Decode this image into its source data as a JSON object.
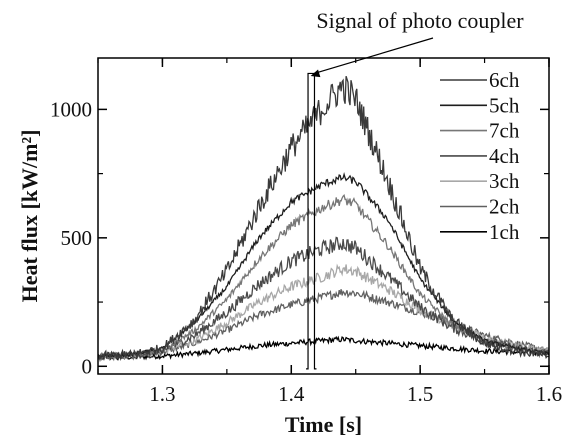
{
  "chart_data": {
    "type": "line",
    "title": "",
    "xlabel": "Time [s]",
    "ylabel": "Heat flux [kW/m²]",
    "xlim": [
      1.25,
      1.6
    ],
    "ylim": [
      -30,
      1200
    ],
    "x_ticks": [
      1.3,
      1.4,
      1.5,
      1.6
    ],
    "x_tick_labels": [
      "1.3",
      "1.4",
      "1.5",
      "1.6"
    ],
    "y_ticks": [
      0,
      500,
      1000
    ],
    "y_tick_labels": [
      "0",
      "500",
      "1000"
    ],
    "grid": false,
    "legend_position": "top-right",
    "annotation": {
      "text": "Signal of photo coupler",
      "points_to": [
        1.415,
        1130
      ]
    },
    "photo_coupler_signal": {
      "x_start": 1.413,
      "x_end": 1.418,
      "y_low": -10,
      "y_high": 1140
    },
    "x": [
      1.25,
      1.275,
      1.3,
      1.325,
      1.35,
      1.375,
      1.4,
      1.425,
      1.44,
      1.45,
      1.475,
      1.5,
      1.525,
      1.55,
      1.575,
      1.6
    ],
    "series": [
      {
        "name": "6ch",
        "color": "#3a3a3a",
        "noise": 26,
        "values": [
          40,
          45,
          70,
          180,
          370,
          620,
          850,
          1010,
          1090,
          1040,
          720,
          380,
          180,
          90,
          60,
          40
        ]
      },
      {
        "name": "5ch",
        "color": "#1e1e1e",
        "noise": 8,
        "values": [
          40,
          45,
          70,
          170,
          310,
          500,
          640,
          710,
          735,
          720,
          570,
          340,
          180,
          100,
          70,
          50
        ]
      },
      {
        "name": "7ch",
        "color": "#777777",
        "noise": 12,
        "values": [
          40,
          45,
          60,
          140,
          260,
          420,
          550,
          620,
          650,
          630,
          470,
          280,
          160,
          100,
          70,
          50
        ]
      },
      {
        "name": "4ch",
        "color": "#4a4a4a",
        "noise": 22,
        "values": [
          40,
          45,
          60,
          120,
          210,
          320,
          410,
          460,
          480,
          460,
          350,
          230,
          150,
          100,
          70,
          50
        ]
      },
      {
        "name": "3ch",
        "color": "#a8a8a8",
        "noise": 18,
        "values": [
          40,
          45,
          60,
          100,
          170,
          250,
          310,
          350,
          380,
          370,
          300,
          220,
          160,
          110,
          80,
          60
        ]
      },
      {
        "name": "2ch",
        "color": "#606060",
        "noise": 16,
        "values": [
          35,
          40,
          55,
          90,
          140,
          200,
          240,
          270,
          290,
          285,
          250,
          210,
          170,
          120,
          90,
          60
        ]
      },
      {
        "name": "1ch",
        "color": "#000000",
        "noise": 14,
        "values": [
          35,
          35,
          40,
          50,
          65,
          80,
          90,
          100,
          105,
          100,
          90,
          80,
          70,
          60,
          55,
          50
        ]
      }
    ],
    "legend_order": [
      "6ch",
      "5ch",
      "7ch",
      "4ch",
      "3ch",
      "2ch",
      "1ch"
    ]
  }
}
